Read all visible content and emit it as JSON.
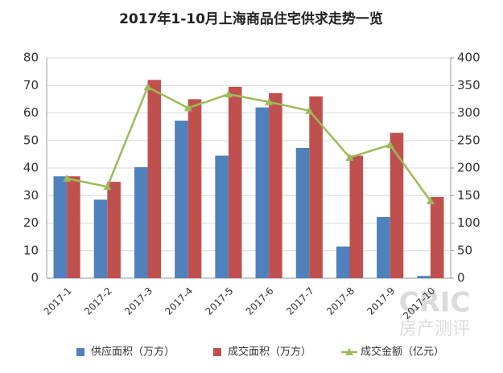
{
  "chart_data": {
    "type": "bar",
    "title": "2017年1-10月上海商品住宅供求走势一览",
    "categories": [
      "2017-1",
      "2017-2",
      "2017-3",
      "2017-4",
      "2017-5",
      "2017-6",
      "2017-7",
      "2017-8",
      "2017-9",
      "2017-10"
    ],
    "series": [
      {
        "name": "供应面积（万方）",
        "color": "#4f81bd",
        "type": "bar",
        "values": [
          37,
          28.5,
          40.3,
          57.2,
          44.5,
          62,
          47.3,
          11.5,
          22.2,
          0.8
        ]
      },
      {
        "name": "成交面积（万方）",
        "color": "#c0504d",
        "type": "bar",
        "values": [
          37,
          35,
          72,
          65,
          69.5,
          67.2,
          66,
          44.5,
          52.8,
          29.5
        ]
      },
      {
        "name": "成交金额（亿元）",
        "color": "#9bbb59",
        "type": "line",
        "axis": "y2",
        "values": [
          181,
          166,
          347,
          309,
          334,
          320,
          304,
          219,
          242,
          140
        ]
      }
    ],
    "ylim": [
      0,
      80
    ],
    "yticks": [
      0,
      10,
      20,
      30,
      40,
      50,
      60,
      70,
      80
    ],
    "y2lim": [
      0,
      400
    ],
    "y2ticks": [
      0,
      50,
      100,
      150,
      200,
      250,
      300,
      350,
      400
    ],
    "grid": true,
    "legend": "bottom",
    "watermark": [
      "CRIC",
      "房产测评"
    ]
  }
}
